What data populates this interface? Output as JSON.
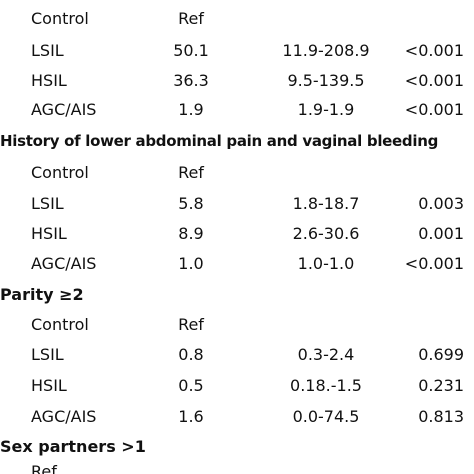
{
  "sections": [
    {
      "heading": "",
      "rows": [
        {
          "label": "Control",
          "or": "Ref",
          "ci": "",
          "p": ""
        },
        {
          "label": "LSIL",
          "or": "50.1",
          "ci": "11.9-208.9",
          "p": "<0.001"
        },
        {
          "label": "HSIL",
          "or": "36.3",
          "ci": "9.5-139.5",
          "p": "<0.001"
        },
        {
          "label": "AGC/AIS",
          "or": "1.9",
          "ci": "1.9-1.9",
          "p": "<0.001"
        }
      ]
    },
    {
      "heading": "History of lower abdominal pain and vaginal bleeding",
      "rows": [
        {
          "label": "Control",
          "or": "Ref",
          "ci": "",
          "p": ""
        },
        {
          "label": "LSIL",
          "or": "5.8",
          "ci": "1.8-18.7",
          "p": "0.003"
        },
        {
          "label": "HSIL",
          "or": "8.9",
          "ci": "2.6-30.6",
          "p": "0.001"
        },
        {
          "label": "AGC/AIS",
          "or": "1.0",
          "ci": "1.0-1.0",
          "p": "<0.001"
        }
      ]
    },
    {
      "heading": "Parity ≥2",
      "rows": [
        {
          "label": "Control",
          "or": "Ref",
          "ci": "",
          "p": ""
        },
        {
          "label": "LSIL",
          "or": "0.8",
          "ci": "0.3-2.4",
          "p": "0.699"
        },
        {
          "label": "HSIL",
          "or": "0.5",
          "ci": "0.18.-1.5",
          "p": "0.231"
        },
        {
          "label": "AGC/AIS",
          "or": "1.6",
          "ci": "0.0-74.5",
          "p": "0.813"
        }
      ]
    },
    {
      "heading": "Sex partners >1",
      "rows": [
        {
          "label": "",
          "or": "Ref",
          "ci": "",
          "p": ""
        }
      ]
    }
  ]
}
